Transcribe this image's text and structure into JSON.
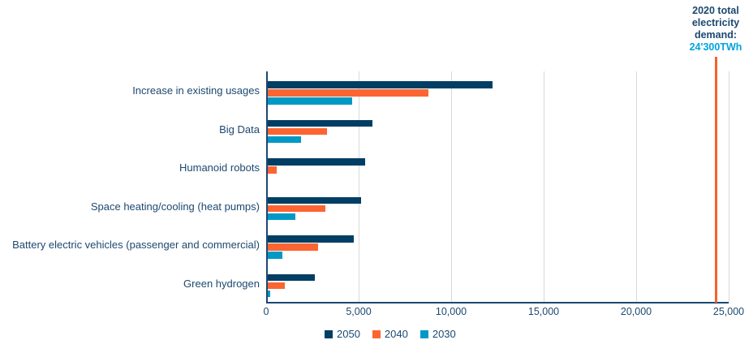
{
  "chart_data": {
    "type": "bar",
    "orientation": "horizontal",
    "title": "",
    "xlabel": "",
    "ylabel": "",
    "unit": "TWh",
    "categories": [
      "Increase in existing usages",
      "Big Data",
      "Humanoid robots",
      "Space heating/cooling (heat pumps)",
      "Battery electric vehicles (passenger and commercial)",
      "Green hydrogen"
    ],
    "series": [
      {
        "name": "2050",
        "color": "#003e64",
        "values": [
          12150,
          5650,
          5250,
          5050,
          4650,
          2550
        ]
      },
      {
        "name": "2040",
        "color": "#fc6531",
        "values": [
          8700,
          3200,
          500,
          3100,
          2700,
          900
        ]
      },
      {
        "name": "2030",
        "color": "#0099c6",
        "values": [
          4550,
          1800,
          0,
          1500,
          800,
          150
        ]
      }
    ],
    "xlim": [
      0,
      25000
    ],
    "x_ticks": [
      {
        "value": 0,
        "label": "0"
      },
      {
        "value": 5000,
        "label": "5,000"
      },
      {
        "value": 10000,
        "label": "10,000"
      },
      {
        "value": 15000,
        "label": "15,000"
      },
      {
        "value": 20000,
        "label": "20,000"
      },
      {
        "value": 25000,
        "label": "25,000"
      }
    ],
    "grid": "vertical",
    "legend_position": "bottom",
    "annotation": {
      "text_lines": [
        "2020 total",
        "electricity",
        "demand:"
      ],
      "value_text": "24'300TWh",
      "line_value": 24300,
      "line_color": "#f4632c",
      "value_text_color": "#00a3dd"
    }
  },
  "colors": {
    "axis": "#1c4870",
    "gridline": "#d9d9d9",
    "label_text": "#1c4870",
    "background": "#ffffff"
  }
}
